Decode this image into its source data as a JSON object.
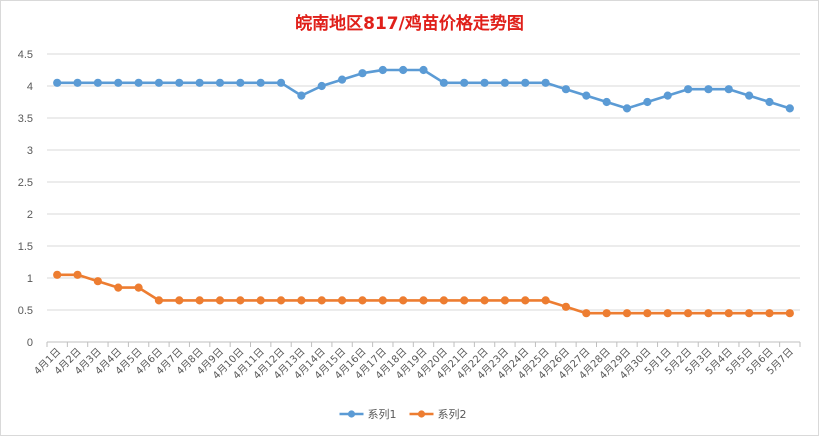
{
  "chart_data": {
    "type": "line",
    "title": "皖南地区817/鸡苗价格走势图",
    "xlabel": "",
    "ylabel": "",
    "ylim": [
      0,
      4.5
    ],
    "yticks": [
      "0",
      "0.5",
      "1",
      "1.5",
      "2",
      "2.5",
      "3",
      "3.5",
      "4",
      "4.5"
    ],
    "grid": true,
    "legend_position": "bottom",
    "categories": [
      "4月1日",
      "4月2日",
      "4月3日",
      "4月4日",
      "4月5日",
      "4月6日",
      "4月7日",
      "4月8日",
      "4月9日",
      "4月10日",
      "4月11日",
      "4月12日",
      "4月13日",
      "4月14日",
      "4月15日",
      "4月16日",
      "4月17日",
      "4月18日",
      "4月19日",
      "4月20日",
      "4月21日",
      "4月22日",
      "4月23日",
      "4月24日",
      "4月25日",
      "4月26日",
      "4月27日",
      "4月28日",
      "4月29日",
      "4月30日",
      "5月1日",
      "5月2日",
      "5月3日",
      "5月4日",
      "5月5日",
      "5月6日",
      "5月7日"
    ],
    "series": [
      {
        "name": "系列1",
        "color": "#5b9bd5",
        "values": [
          4.05,
          4.05,
          4.05,
          4.05,
          4.05,
          4.05,
          4.05,
          4.05,
          4.05,
          4.05,
          4.05,
          4.05,
          3.85,
          4.0,
          4.1,
          4.2,
          4.25,
          4.25,
          4.25,
          4.05,
          4.05,
          4.05,
          4.05,
          4.05,
          4.05,
          3.95,
          3.85,
          3.75,
          3.65,
          3.75,
          3.85,
          3.95,
          3.95,
          3.95,
          3.85,
          3.75,
          3.65
        ]
      },
      {
        "name": "系列2",
        "color": "#ed7d31",
        "values": [
          1.05,
          1.05,
          0.95,
          0.85,
          0.85,
          0.65,
          0.65,
          0.65,
          0.65,
          0.65,
          0.65,
          0.65,
          0.65,
          0.65,
          0.65,
          0.65,
          0.65,
          0.65,
          0.65,
          0.65,
          0.65,
          0.65,
          0.65,
          0.65,
          0.65,
          0.55,
          0.45,
          0.45,
          0.45,
          0.45,
          0.45,
          0.45,
          0.45,
          0.45,
          0.45,
          0.45,
          0.45
        ]
      }
    ]
  }
}
